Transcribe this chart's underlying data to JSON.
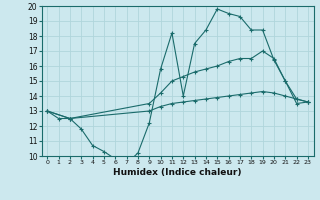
{
  "xlabel": "Humidex (Indice chaleur)",
  "xlim": [
    -0.5,
    23.5
  ],
  "ylim": [
    10,
    20
  ],
  "xticks": [
    0,
    1,
    2,
    3,
    4,
    5,
    6,
    7,
    8,
    9,
    10,
    11,
    12,
    13,
    14,
    15,
    16,
    17,
    18,
    19,
    20,
    21,
    22,
    23
  ],
  "yticks": [
    10,
    11,
    12,
    13,
    14,
    15,
    16,
    17,
    18,
    19,
    20
  ],
  "bg_color": "#cce8ee",
  "grid_color": "#b0d5dc",
  "line_color": "#1a6b6b",
  "line1_x": [
    0,
    1,
    2,
    3,
    4,
    5,
    6,
    7,
    8,
    9,
    10,
    11,
    12,
    13,
    14,
    15,
    16,
    17,
    18,
    19,
    20,
    21,
    22,
    23
  ],
  "line1_y": [
    13.0,
    12.5,
    12.5,
    11.8,
    10.7,
    10.3,
    9.8,
    9.5,
    10.2,
    12.2,
    15.8,
    18.2,
    14.0,
    17.5,
    18.4,
    19.8,
    19.5,
    19.3,
    18.4,
    18.4,
    16.4,
    15.0,
    13.8,
    13.6
  ],
  "line2_x": [
    0,
    2,
    9,
    10,
    11,
    12,
    13,
    14,
    15,
    16,
    17,
    18,
    19,
    20,
    21,
    22,
    23
  ],
  "line2_y": [
    13.0,
    12.5,
    13.5,
    14.2,
    15.0,
    15.3,
    15.6,
    15.8,
    16.0,
    16.3,
    16.5,
    16.5,
    17.0,
    16.5,
    15.0,
    13.5,
    13.6
  ],
  "line3_x": [
    0,
    2,
    9,
    10,
    11,
    12,
    13,
    14,
    15,
    16,
    17,
    18,
    19,
    20,
    21,
    22,
    23
  ],
  "line3_y": [
    13.0,
    12.5,
    13.0,
    13.3,
    13.5,
    13.6,
    13.7,
    13.8,
    13.9,
    14.0,
    14.1,
    14.2,
    14.3,
    14.2,
    14.0,
    13.8,
    13.6
  ]
}
